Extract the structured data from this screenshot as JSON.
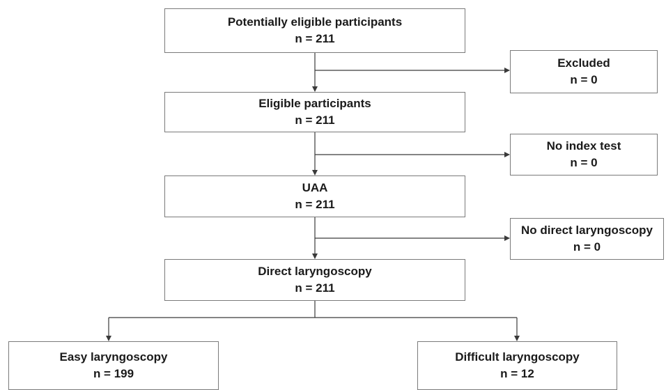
{
  "flow": {
    "potential": {
      "label": "Potentially eligible participants",
      "count": "n = 211"
    },
    "excluded": {
      "label": "Excluded",
      "count": "n = 0"
    },
    "eligible": {
      "label": "Eligible participants",
      "count": "n = 211"
    },
    "no_index": {
      "label": "No index test",
      "count": "n = 0"
    },
    "uaa": {
      "label": "UAA",
      "count": "n = 211"
    },
    "no_direct": {
      "label": "No direct laryngoscopy",
      "count": "n = 0"
    },
    "direct": {
      "label": "Direct laryngoscopy",
      "count": "n = 211"
    },
    "easy": {
      "label": "Easy laryngoscopy",
      "count": "n = 199"
    },
    "difficult": {
      "label": "Difficult laryngoscopy",
      "count": "n = 12"
    }
  },
  "colors": {
    "line": "#3a3a3a",
    "border": "#7a7a7a"
  }
}
